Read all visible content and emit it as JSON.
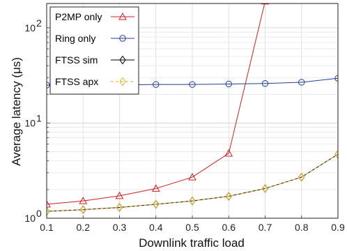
{
  "chart_data": {
    "type": "line",
    "title": "",
    "xlabel": "Downlink traffic load",
    "ylabel": "Average latency (μs)",
    "x": [
      0.1,
      0.2,
      0.3,
      0.4,
      0.5,
      0.6,
      0.7,
      0.8,
      0.9
    ],
    "xlim": [
      0.1,
      0.9
    ],
    "ylim": [
      1,
      180
    ],
    "yscale": "log",
    "grid": true,
    "legend_position": "top-left",
    "x_tick_labels": [
      "0.1",
      "0.2",
      "0.3",
      "0.4",
      "0.5",
      "0.6",
      "0.7",
      "0.8",
      "0.9"
    ],
    "y_ticks": [
      {
        "value": 1,
        "base": "10",
        "exp": "0"
      },
      {
        "value": 10,
        "base": "10",
        "exp": "1"
      },
      {
        "value": 100,
        "base": "10",
        "exp": "2"
      }
    ],
    "series": [
      {
        "name": "P2MP only",
        "color": "#cc1f1f",
        "marker": "triangle",
        "dash": "solid",
        "values": [
          1.4,
          1.52,
          1.72,
          2.05,
          2.7,
          4.8,
          190,
          null,
          null
        ]
      },
      {
        "name": "Ring only",
        "color": "#1f3f8f",
        "marker": "circle",
        "dash": "solid",
        "values": [
          25.0,
          25.3,
          25.1,
          25.4,
          25.4,
          25.7,
          26.0,
          26.8,
          29.5
        ]
      },
      {
        "name": "FTSS sim",
        "color": "#000000",
        "marker": "diamond",
        "dash": "solid",
        "values": [
          1.18,
          1.23,
          1.3,
          1.4,
          1.52,
          1.7,
          2.05,
          2.7,
          4.7
        ]
      },
      {
        "name": "FTSS apx",
        "color": "#e0b020",
        "marker": "diamond",
        "dash": "dashed",
        "values": [
          1.18,
          1.23,
          1.3,
          1.4,
          1.52,
          1.7,
          2.05,
          2.7,
          4.7
        ]
      }
    ]
  }
}
